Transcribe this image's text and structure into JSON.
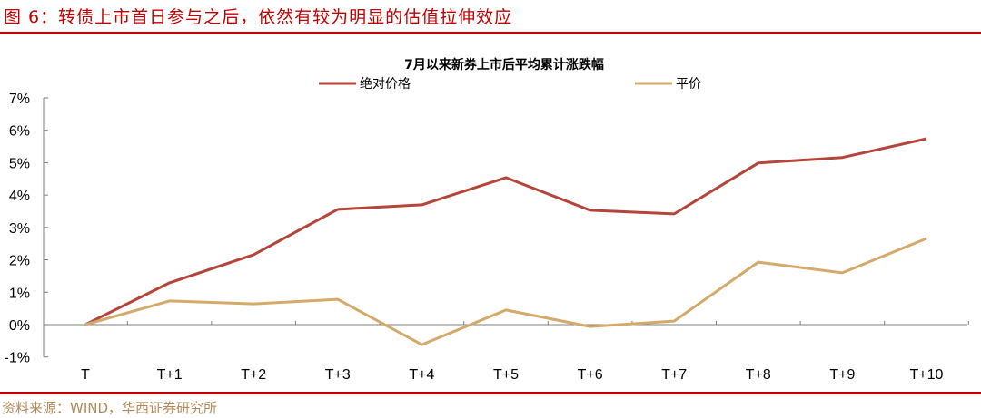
{
  "figure": {
    "title": "图 6：转债上市首日参与之后，依然有较为明显的估值拉伸效应",
    "source": "资料来源：WIND，华西证券研究所",
    "accent_color": "#c00000"
  },
  "chart_data": {
    "type": "line",
    "title": "7月以来新券上市后平均累计涨跌幅",
    "xlabel": "",
    "ylabel": "",
    "categories": [
      "T",
      "T+1",
      "T+2",
      "T+3",
      "T+4",
      "T+5",
      "T+6",
      "T+7",
      "T+8",
      "T+9",
      "T+10"
    ],
    "series": [
      {
        "name": "绝对价格",
        "color": "#b5443a",
        "values": [
          0.0,
          1.29,
          2.16,
          3.56,
          3.7,
          4.54,
          3.53,
          3.42,
          4.99,
          5.16,
          5.74
        ]
      },
      {
        "name": "平价",
        "color": "#d4aa6a",
        "values": [
          0.0,
          0.73,
          0.64,
          0.78,
          -0.62,
          0.45,
          -0.06,
          0.11,
          1.93,
          1.6,
          2.66
        ]
      }
    ],
    "yticks": [
      "7%",
      "6%",
      "5%",
      "4%",
      "3%",
      "2%",
      "1%",
      "0%",
      "-1%"
    ],
    "ylim": [
      -1,
      7
    ],
    "grid": false,
    "legend_position": "top"
  }
}
